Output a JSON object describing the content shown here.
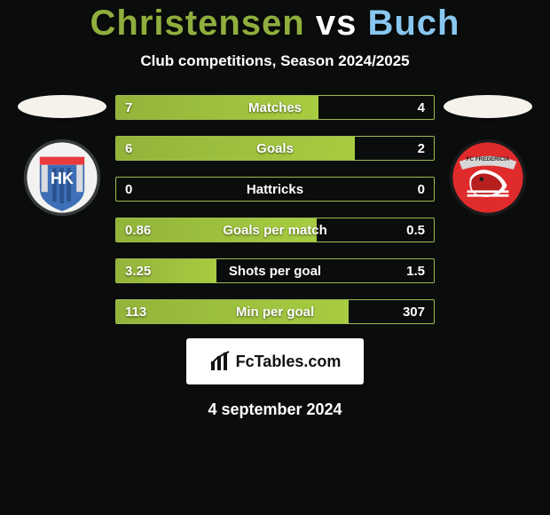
{
  "title": {
    "player1": "Christensen",
    "vs": " vs ",
    "player2": "Buch"
  },
  "subtitle": "Club competitions, Season 2024/2025",
  "colors": {
    "title_player1": "#8fae3d",
    "title_vs": "#ffffff",
    "title_player2": "#88c7f0",
    "bar_fill_start": "#92b43a",
    "bar_fill_end": "#a7cc41",
    "bar_border": "#9fb94f",
    "background": "#0b0d0c",
    "text": "#ffffff",
    "branding_bg": "#ffffff",
    "branding_text": "#111111"
  },
  "bars": [
    {
      "label": "Matches",
      "left": "7",
      "right": "4",
      "fill_pct": 63.6
    },
    {
      "label": "Goals",
      "left": "6",
      "right": "2",
      "fill_pct": 75.0
    },
    {
      "label": "Hattricks",
      "left": "0",
      "right": "0",
      "fill_pct": 0.0
    },
    {
      "label": "Goals per match",
      "left": "0.86",
      "right": "0.5",
      "fill_pct": 63.2
    },
    {
      "label": "Shots per goal",
      "left": "3.25",
      "right": "1.5",
      "fill_pct": 31.6
    },
    {
      "label": "Min per goal",
      "left": "113",
      "right": "307",
      "fill_pct": 73.1
    }
  ],
  "branding": "FcTables.com",
  "date": "4 september 2024",
  "crests": {
    "left": {
      "outer_ring": "#36393a",
      "shield_top": "#e93a3d",
      "shield_body": "#3e6fb7",
      "pillar": "#d9dbe0",
      "letters": "HK"
    },
    "right": {
      "outer_ring": "#1a1a1a",
      "banner_top": "#d7d7d7",
      "banner_text": "FC FREDERICIA",
      "body": "#df2b2b",
      "accent": "#ffffff"
    }
  }
}
